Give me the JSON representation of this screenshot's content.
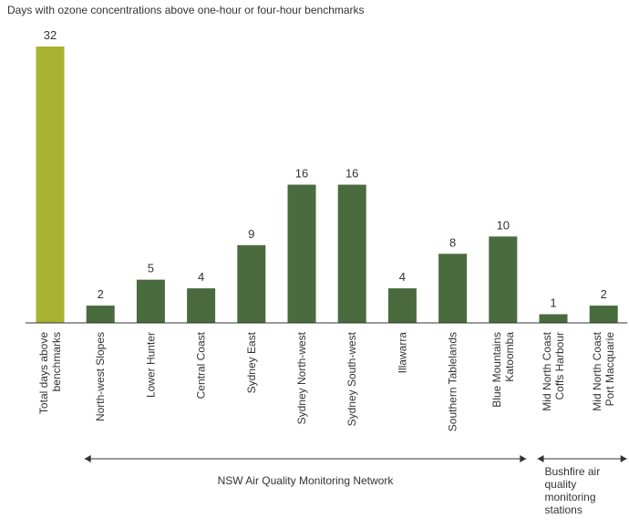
{
  "chart_data": {
    "type": "bar",
    "title": "Days with ozone concentrations above one-hour or four-hour benchmarks",
    "categories": [
      [
        "Total days above",
        "benchmarks"
      ],
      [
        "North-west Slopes"
      ],
      [
        "Lower Hunter"
      ],
      [
        "Central Coast"
      ],
      [
        "Sydney East"
      ],
      [
        "Sydney North-west"
      ],
      [
        "Sydney South-west"
      ],
      [
        "Illawarra"
      ],
      [
        "Southern Tablelands"
      ],
      [
        "Blue Mountains",
        "Katoomba"
      ],
      [
        "Mid North Coast",
        "Coffs Harbour"
      ],
      [
        "Mid North Coast",
        "Port Macquarie"
      ]
    ],
    "values": [
      32,
      2,
      5,
      4,
      9,
      16,
      16,
      4,
      8,
      10,
      1,
      2
    ],
    "colors": [
      "#aab232",
      "#4a6b3e",
      "#4a6b3e",
      "#4a6b3e",
      "#4a6b3e",
      "#4a6b3e",
      "#4a6b3e",
      "#4a6b3e",
      "#4a6b3e",
      "#4a6b3e",
      "#4a6b3e",
      "#4a6b3e"
    ],
    "ylim": [
      0,
      32
    ],
    "grid": false,
    "groups": [
      {
        "label": [
          "NSW Air Quality Monitoring Network"
        ],
        "from": 1,
        "to": 9
      },
      {
        "label": [
          "Bushfire air",
          "quality",
          "monitoring",
          "stations"
        ],
        "from": 10,
        "to": 11
      }
    ]
  }
}
